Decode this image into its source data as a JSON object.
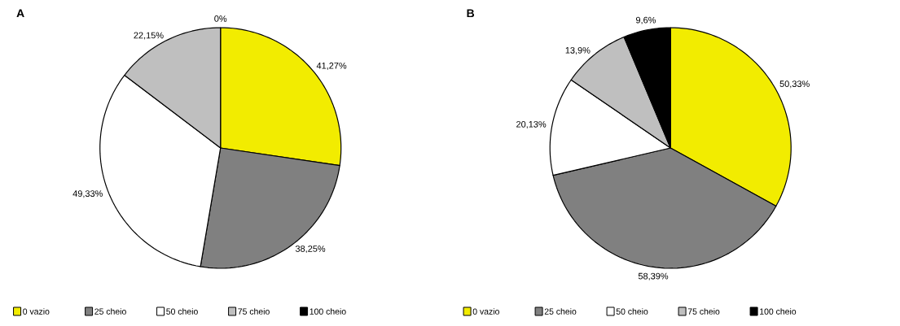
{
  "chart_data": [
    {
      "type": "pie",
      "title": "A",
      "categories": [
        "0 vazio",
        "25 cheio",
        "50 cheio",
        "75 cheio",
        "100 cheio"
      ],
      "values": [
        41.27,
        38.25,
        49.33,
        22.15,
        0
      ],
      "value_labels": [
        "41,27%",
        "38,25%",
        "49,33%",
        "22,15%",
        "0%"
      ],
      "colors": [
        "#f2ec00",
        "#808080",
        "#ffffff",
        "#bfbfbf",
        "#000000"
      ],
      "legend": "bottom"
    },
    {
      "type": "pie",
      "title": "B",
      "categories": [
        "0 vazio",
        "25 cheio",
        "50 cheio",
        "75 cheio",
        "100 cheio"
      ],
      "values": [
        50.33,
        58.39,
        20.13,
        13.9,
        9.6
      ],
      "value_labels": [
        "50,33%",
        "58,39%",
        "20,13%",
        "13,9%",
        "9,6%"
      ],
      "colors": [
        "#f2ec00",
        "#808080",
        "#ffffff",
        "#bfbfbf",
        "#000000"
      ],
      "legend": "bottom"
    }
  ]
}
